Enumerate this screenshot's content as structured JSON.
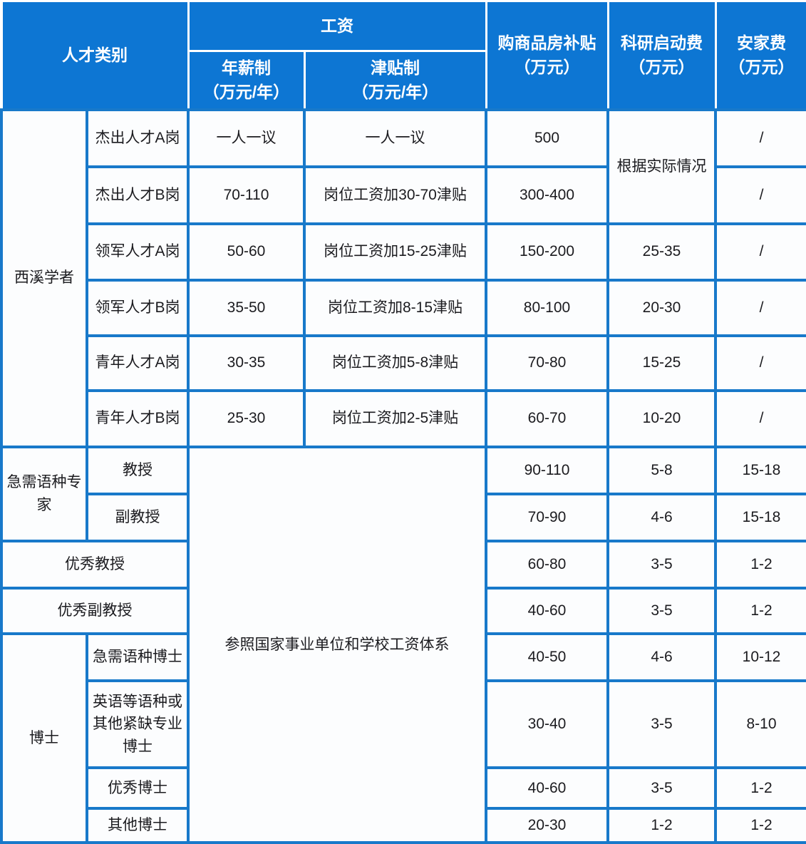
{
  "colors": {
    "header_bg": "#0d76d3",
    "grid_blue": "#1879ca",
    "cell_bg": "#fcfdfe",
    "header_text": "#ffffff",
    "body_text": "#1b1b1f"
  },
  "chart_data": {
    "type": "table",
    "header_rows": [
      {
        "cells": [
          {
            "text": "人才类别",
            "colspan": 2,
            "rowspan": 2,
            "name": "header-talent-category"
          },
          {
            "text": "工资",
            "colspan": 2,
            "rowspan": 1,
            "name": "header-salary"
          },
          {
            "text": "购商品房补贴\n（万元）",
            "colspan": 1,
            "rowspan": 2,
            "name": "header-housing-purchase-subsidy"
          },
          {
            "text": "科研启动费\n（万元）",
            "colspan": 1,
            "rowspan": 2,
            "name": "header-research-startup-fund"
          },
          {
            "text": "安家费\n（万元）",
            "colspan": 1,
            "rowspan": 2,
            "name": "header-settling-in-allowance"
          }
        ]
      },
      {
        "cells": [
          {
            "text": "年薪制\n（万元/年）",
            "colspan": 1,
            "rowspan": 1,
            "name": "header-annual-salary-system"
          },
          {
            "text": "津贴制\n（万元/年）",
            "colspan": 1,
            "rowspan": 1,
            "name": "header-allowance-system"
          }
        ]
      }
    ],
    "rows": [
      {
        "cells": [
          {
            "text": "西溪学者",
            "rowspan": 6,
            "name": "group-label-xixi-scholar"
          },
          {
            "text": "杰出人才A岗",
            "name": "category-cell"
          },
          {
            "text": "一人一议",
            "name": "annual-salary-cell"
          },
          {
            "text": "一人一议",
            "name": "allowance-cell"
          },
          {
            "text": "500",
            "name": "housing-subsidy-cell"
          },
          {
            "text": "根据实际情况",
            "rowspan": 2,
            "name": "research-fund-cell"
          },
          {
            "text": "/",
            "name": "settling-fee-cell"
          }
        ]
      },
      {
        "cells": [
          {
            "text": "杰出人才B岗",
            "name": "category-cell"
          },
          {
            "text": "70-110",
            "name": "annual-salary-cell"
          },
          {
            "text": "岗位工资加30-70津贴",
            "name": "allowance-cell"
          },
          {
            "text": "300-400",
            "name": "housing-subsidy-cell"
          },
          {
            "text": "/",
            "name": "settling-fee-cell"
          }
        ]
      },
      {
        "cells": [
          {
            "text": "领军人才A岗",
            "name": "category-cell"
          },
          {
            "text": "50-60",
            "name": "annual-salary-cell"
          },
          {
            "text": "岗位工资加15-25津贴",
            "name": "allowance-cell"
          },
          {
            "text": "150-200",
            "name": "housing-subsidy-cell"
          },
          {
            "text": "25-35",
            "name": "research-fund-cell"
          },
          {
            "text": "/",
            "name": "settling-fee-cell"
          }
        ]
      },
      {
        "cells": [
          {
            "text": "领军人才B岗",
            "name": "category-cell"
          },
          {
            "text": "35-50",
            "name": "annual-salary-cell"
          },
          {
            "text": "岗位工资加8-15津贴",
            "name": "allowance-cell"
          },
          {
            "text": "80-100",
            "name": "housing-subsidy-cell"
          },
          {
            "text": "20-30",
            "name": "research-fund-cell"
          },
          {
            "text": "/",
            "name": "settling-fee-cell"
          }
        ]
      },
      {
        "cells": [
          {
            "text": "青年人才A岗",
            "name": "category-cell"
          },
          {
            "text": "30-35",
            "name": "annual-salary-cell"
          },
          {
            "text": "岗位工资加5-8津贴",
            "name": "allowance-cell"
          },
          {
            "text": "70-80",
            "name": "housing-subsidy-cell"
          },
          {
            "text": "15-25",
            "name": "research-fund-cell"
          },
          {
            "text": "/",
            "name": "settling-fee-cell"
          }
        ]
      },
      {
        "cells": [
          {
            "text": "青年人才B岗",
            "name": "category-cell"
          },
          {
            "text": "25-30",
            "name": "annual-salary-cell"
          },
          {
            "text": "岗位工资加2-5津贴",
            "name": "allowance-cell"
          },
          {
            "text": "60-70",
            "name": "housing-subsidy-cell"
          },
          {
            "text": "10-20",
            "name": "research-fund-cell"
          },
          {
            "text": "/",
            "name": "settling-fee-cell"
          }
        ]
      },
      {
        "cells": [
          {
            "text": "急需语种专家",
            "rowspan": 2,
            "name": "group-label-urgent-language-experts"
          },
          {
            "text": "教授",
            "name": "category-cell"
          },
          {
            "text": "参照国家事业单位和学校工资体系",
            "colspan": 2,
            "rowspan": 8,
            "name": "salary-reference-note-cell"
          },
          {
            "text": "90-110",
            "name": "housing-subsidy-cell"
          },
          {
            "text": "5-8",
            "name": "research-fund-cell"
          },
          {
            "text": "15-18",
            "name": "settling-fee-cell"
          }
        ]
      },
      {
        "cells": [
          {
            "text": "副教授",
            "name": "category-cell"
          },
          {
            "text": "70-90",
            "name": "housing-subsidy-cell"
          },
          {
            "text": "4-6",
            "name": "research-fund-cell"
          },
          {
            "text": "15-18",
            "name": "settling-fee-cell"
          }
        ]
      },
      {
        "cells": [
          {
            "text": "优秀教授",
            "colspan": 2,
            "name": "category-cell-excellent-professor"
          },
          {
            "text": "60-80",
            "name": "housing-subsidy-cell"
          },
          {
            "text": "3-5",
            "name": "research-fund-cell"
          },
          {
            "text": "1-2",
            "name": "settling-fee-cell"
          }
        ]
      },
      {
        "cells": [
          {
            "text": "优秀副教授",
            "colspan": 2,
            "name": "category-cell-excellent-associate-professor"
          },
          {
            "text": "40-60",
            "name": "housing-subsidy-cell"
          },
          {
            "text": "3-5",
            "name": "research-fund-cell"
          },
          {
            "text": "1-2",
            "name": "settling-fee-cell"
          }
        ]
      },
      {
        "cells": [
          {
            "text": "博士",
            "rowspan": 4,
            "name": "group-label-doctor"
          },
          {
            "text": "急需语种博士",
            "name": "category-cell"
          },
          {
            "text": "40-50",
            "name": "housing-subsidy-cell"
          },
          {
            "text": "4-6",
            "name": "research-fund-cell"
          },
          {
            "text": "10-12",
            "name": "settling-fee-cell"
          }
        ]
      },
      {
        "cells": [
          {
            "text": "英语等语种或其他紧缺专业博士",
            "name": "category-cell"
          },
          {
            "text": "30-40",
            "name": "housing-subsidy-cell"
          },
          {
            "text": "3-5",
            "name": "research-fund-cell"
          },
          {
            "text": "8-10",
            "name": "settling-fee-cell"
          }
        ]
      },
      {
        "cells": [
          {
            "text": "优秀博士",
            "name": "category-cell"
          },
          {
            "text": "40-60",
            "name": "housing-subsidy-cell"
          },
          {
            "text": "3-5",
            "name": "research-fund-cell"
          },
          {
            "text": "1-2",
            "name": "settling-fee-cell"
          }
        ]
      },
      {
        "cells": [
          {
            "text": "其他博士",
            "name": "category-cell"
          },
          {
            "text": "20-30",
            "name": "housing-subsidy-cell"
          },
          {
            "text": "1-2",
            "name": "research-fund-cell"
          },
          {
            "text": "1-2",
            "name": "settling-fee-cell"
          }
        ]
      }
    ]
  }
}
